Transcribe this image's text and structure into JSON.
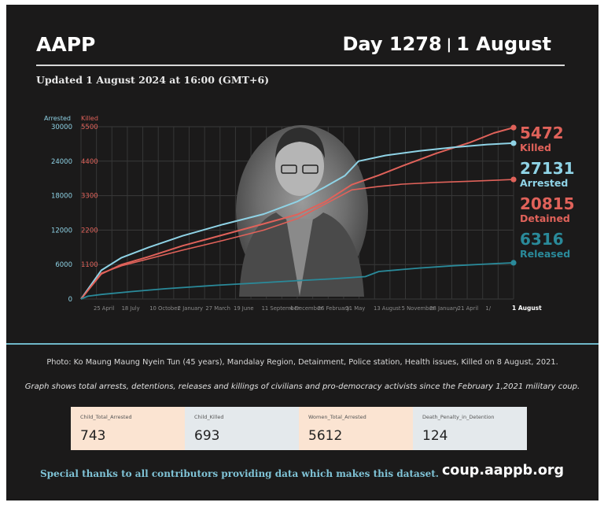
{
  "header": {
    "org": "AAPP",
    "day_label": "Day 1278",
    "separator": "|",
    "date_label": "1 August",
    "updated": "Updated 1 August 2024 at 16:00 (GMT+6)"
  },
  "colors": {
    "background": "#1b1a1a",
    "killed": "#e0625a",
    "arrested": "#8fd3e6",
    "detained": "#e0625a",
    "released": "#2a8a9a"
  },
  "chart_data": {
    "type": "line",
    "x_tick_labels": [
      "25 April",
      "18 July",
      "10 October",
      "2 January",
      "27 March",
      "19 June",
      "11 September",
      "4 December",
      "26 February",
      "21 May",
      "13 August",
      "5 November",
      "28 January",
      "21 April",
      "1/",
      "1 August"
    ],
    "x_range": [
      "2021-02-01",
      "2024-08-01"
    ],
    "left_axis": {
      "label": "Arrested",
      "ticks": [
        0,
        6000,
        12000,
        18000,
        24000,
        30000
      ],
      "ylim": [
        0,
        30000
      ]
    },
    "right_axis": {
      "label": "Killed",
      "ticks": [
        0,
        1100,
        2200,
        3300,
        4400,
        5500
      ],
      "ylim": [
        0,
        5500
      ]
    },
    "grid": true,
    "series": [
      {
        "name": "Killed",
        "axis": "right",
        "end_value": "5472",
        "x_days": [
          0,
          60,
          120,
          200,
          300,
          420,
          540,
          640,
          720,
          800,
          880,
          950,
          1050,
          1150,
          1220,
          1278
        ],
        "values": [
          0,
          800,
          1100,
          1350,
          1700,
          2050,
          2400,
          2700,
          3100,
          3650,
          3950,
          4250,
          4650,
          5000,
          5300,
          5472
        ]
      },
      {
        "name": "Arrested",
        "axis": "left",
        "end_value": "27131",
        "x_days": [
          0,
          60,
          120,
          200,
          300,
          420,
          540,
          640,
          720,
          780,
          820,
          900,
          1000,
          1100,
          1200,
          1278
        ],
        "values": [
          0,
          5000,
          7200,
          9000,
          11000,
          13000,
          14800,
          17000,
          19500,
          21500,
          24000,
          25000,
          25800,
          26400,
          26900,
          27131
        ]
      },
      {
        "name": "Detained",
        "axis": "left",
        "end_value": "20815",
        "x_days": [
          0,
          60,
          120,
          200,
          300,
          420,
          540,
          640,
          720,
          800,
          880,
          950,
          1050,
          1150,
          1278
        ],
        "values": [
          0,
          4500,
          5800,
          7000,
          8500,
          10200,
          12000,
          14000,
          16500,
          19000,
          19600,
          20000,
          20300,
          20500,
          20815
        ]
      },
      {
        "name": "Released",
        "axis": "left",
        "end_value": "6316",
        "x_days": [
          0,
          20,
          60,
          150,
          250,
          400,
          520,
          640,
          740,
          840,
          880,
          1000,
          1100,
          1200,
          1278
        ],
        "values": [
          0,
          500,
          800,
          1300,
          1800,
          2400,
          2800,
          3200,
          3500,
          3900,
          4800,
          5400,
          5800,
          6100,
          6316
        ]
      }
    ]
  },
  "photo_caption": "Photo: Ko Maung Maung Nyein Tun (45 years), Mandalay Region, Detainment, Police station, Health issues, Killed on 8 August, 2021.",
  "description": "Graph shows total arrests, detentions, releases and killings of civilians and pro-democracy activists since the February 1,2021 military coup.",
  "stats": [
    {
      "label": "Child_Total_Arrested",
      "value": "743",
      "bg": "#fbe4d2"
    },
    {
      "label": "Child_Killed",
      "value": "693",
      "bg": "#e4e9ec"
    },
    {
      "label": "Women_Total_Arrested",
      "value": "5612",
      "bg": "#fbe4d2"
    },
    {
      "label": "Death_Penalty_in_Detention",
      "value": "124",
      "bg": "#e4e9ec"
    }
  ],
  "footer": {
    "thanks": "Special thanks to all contributors providing data which makes this dataset.",
    "site": "coup.aappb.org"
  }
}
